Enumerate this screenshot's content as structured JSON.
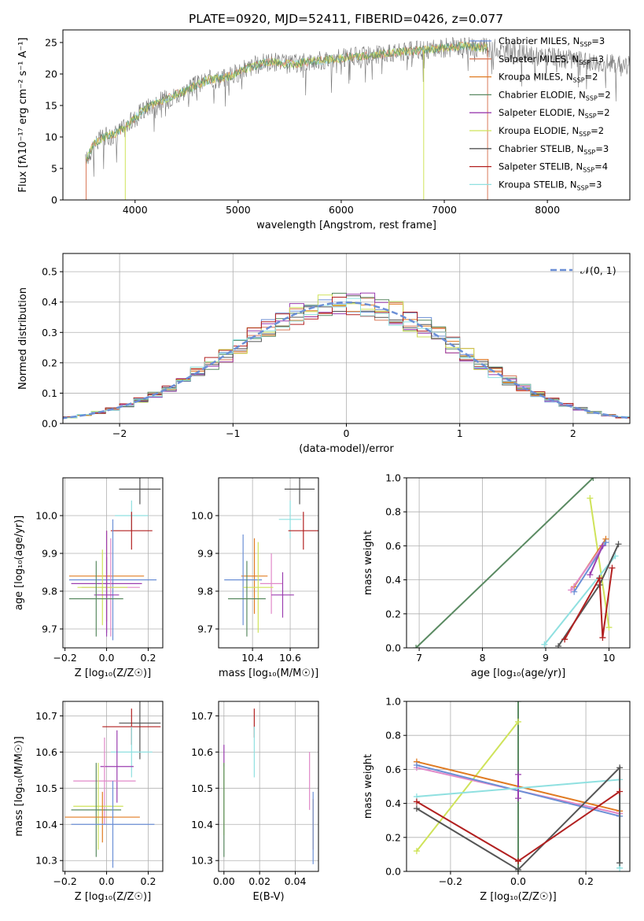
{
  "figure_title": "PLATE=0920, MJD=52411, FIBERID=0426, z=0.077",
  "palette": {
    "chabrier_miles": "#6b8fd6",
    "salpeter_miles": "#d97a5a",
    "kroupa_miles": "#e07b22",
    "chabrier_elodie": "#5a8a62",
    "salpeter_elodie": "#9b3fb0",
    "kroupa_elodie": "#cfe35a",
    "chabrier_stelib": "#555555",
    "salpeter_stelib": "#b22020",
    "kroupa_stelib": "#8fe0e0",
    "pink": "#e088c8",
    "normal_curve": "#6b8fd6",
    "grid": "#b0b0b0"
  },
  "chart_data": [
    {
      "id": "spectrum",
      "type": "line",
      "title": "PLATE=0920, MJD=52411, FIBERID=0426, z=0.077",
      "xlabel": "wavelength [Angstrom, rest frame]",
      "ylabel": "Flux [fλ10⁻¹⁷ erg cm⁻² s⁻¹ A⁻¹]",
      "xlim": [
        3300,
        8800
      ],
      "ylim": [
        0,
        27
      ],
      "xticks": [
        4000,
        5000,
        6000,
        7000,
        8000
      ],
      "yticks": [
        0,
        5,
        10,
        15,
        20,
        25
      ],
      "grid": false,
      "legend_position": "top-right",
      "legend": [
        {
          "label": "Chabrier MILES, N",
          "sub": "SSP",
          "tail": "=3",
          "key": "chabrier_miles"
        },
        {
          "label": "Salpeter MILES, N",
          "sub": "SSP",
          "tail": "=3",
          "key": "salpeter_miles"
        },
        {
          "label": "Kroupa MILES, N",
          "sub": "SSP",
          "tail": "=2",
          "key": "kroupa_miles"
        },
        {
          "label": "Chabrier ELODIE, N",
          "sub": "SSP",
          "tail": "=2",
          "key": "chabrier_elodie"
        },
        {
          "label": "Salpeter ELODIE, N",
          "sub": "SSP",
          "tail": "=2",
          "key": "salpeter_elodie"
        },
        {
          "label": "Kroupa ELODIE, N",
          "sub": "SSP",
          "tail": "=2",
          "key": "kroupa_elodie"
        },
        {
          "label": "Chabrier STELIB, N",
          "sub": "SSP",
          "tail": "=3",
          "key": "chabrier_stelib"
        },
        {
          "label": "Salpeter STELIB, N",
          "sub": "SSP",
          "tail": "=4",
          "key": "salpeter_stelib"
        },
        {
          "label": "Kroupa STELIB, N",
          "sub": "SSP",
          "tail": "=3",
          "key": "kroupa_stelib"
        }
      ],
      "data_trend": {
        "x": [
          3520,
          3600,
          3700,
          3800,
          3900,
          4000,
          4100,
          4200,
          4300,
          4500,
          4700,
          4900,
          5100,
          5300,
          5500,
          5700,
          6000,
          6300,
          6600,
          6900,
          7200,
          7500,
          7800,
          8100,
          8400,
          8800
        ],
        "y": [
          6,
          9,
          10,
          10.5,
          11.5,
          13,
          14.5,
          15.5,
          16,
          17.5,
          19,
          19.5,
          21,
          22,
          21.5,
          22,
          22.5,
          23,
          23.5,
          24,
          24.5,
          24,
          23,
          22.5,
          22,
          21.5
        ]
      },
      "model_coverage": {
        "start": 3520,
        "end": 7420
      }
    },
    {
      "id": "residuals",
      "type": "histogram",
      "xlabel": "(data-model)/error",
      "ylabel": "Normed distribution",
      "xlim": [
        -2.5,
        2.5
      ],
      "ylim": [
        0,
        0.56
      ],
      "xticks": [
        -2,
        -1,
        0,
        1,
        2
      ],
      "yticks": [
        0.0,
        0.1,
        0.2,
        0.3,
        0.4,
        0.5
      ],
      "grid": true,
      "bin_width": 0.125,
      "legend_position": "top-right",
      "legend": [
        {
          "label": "𝒩(0, 1)",
          "key": "normal_curve",
          "style": "dashed"
        }
      ]
    },
    {
      "id": "age_vs_Z",
      "type": "errorbar",
      "xlabel": "Z [log₁₀(Z/Z☉)]",
      "ylabel": "age  [log₁₀(age/yr)]",
      "xlim": [
        -0.21,
        0.27
      ],
      "ylim": [
        9.65,
        10.1
      ],
      "xticks": [
        -0.2,
        0.0,
        0.2
      ],
      "yticks": [
        9.7,
        9.8,
        9.9,
        10.0
      ],
      "grid": true,
      "points": [
        {
          "x": 0.16,
          "xerr": 0.1,
          "y": 10.07,
          "yerr": 0.04,
          "key": "chabrier_stelib"
        },
        {
          "x": 0.12,
          "xerr": 0.08,
          "y": 10.0,
          "yerr": 0.04,
          "key": "kroupa_stelib"
        },
        {
          "x": 0.12,
          "xerr": 0.1,
          "y": 9.96,
          "yerr": 0.05,
          "key": "salpeter_stelib"
        },
        {
          "x": 0.0,
          "xerr": 0.18,
          "y": 9.84,
          "yerr": 0.12,
          "key": "kroupa_miles"
        },
        {
          "x": 0.03,
          "xerr": 0.21,
          "y": 9.83,
          "yerr": 0.16,
          "key": "chabrier_miles"
        },
        {
          "x": 0.0,
          "xerr": 0.17,
          "y": 9.82,
          "yerr": 0.14,
          "key": "salpeter_elodie"
        },
        {
          "x": 0.02,
          "xerr": 0.14,
          "y": 9.81,
          "yerr": 0.13,
          "key": "pink"
        },
        {
          "x": -0.02,
          "xerr": 0.12,
          "y": 9.81,
          "yerr": 0.1,
          "key": "kroupa_elodie"
        },
        {
          "x": 0.0,
          "xerr": 0.06,
          "y": 9.79,
          "yerr": 0.1,
          "key": "salpeter_elodie"
        },
        {
          "x": -0.05,
          "xerr": 0.13,
          "y": 9.78,
          "yerr": 0.1,
          "key": "chabrier_elodie"
        }
      ]
    },
    {
      "id": "age_vs_mass",
      "type": "errorbar",
      "xlabel": "mass [log₁₀(M/M☉)]",
      "ylabel": "",
      "xlim": [
        10.22,
        10.75
      ],
      "ylim": [
        9.65,
        10.1
      ],
      "xticks": [
        10.4,
        10.6
      ],
      "yticks": [
        9.7,
        9.8,
        9.9,
        10.0
      ],
      "grid": true,
      "points": [
        {
          "x": 10.65,
          "xerr": 0.08,
          "y": 10.07,
          "yerr": 0.04,
          "key": "chabrier_stelib"
        },
        {
          "x": 10.6,
          "xerr": 0.06,
          "y": 9.99,
          "yerr": 0.05,
          "key": "kroupa_stelib"
        },
        {
          "x": 10.67,
          "xerr": 0.08,
          "y": 9.96,
          "yerr": 0.05,
          "key": "salpeter_stelib"
        },
        {
          "x": 10.41,
          "xerr": 0.07,
          "y": 9.84,
          "yerr": 0.1,
          "key": "kroupa_miles"
        },
        {
          "x": 10.35,
          "xerr": 0.1,
          "y": 9.83,
          "yerr": 0.12,
          "key": "chabrier_miles"
        },
        {
          "x": 10.5,
          "xerr": 0.06,
          "y": 9.82,
          "yerr": 0.08,
          "key": "pink"
        },
        {
          "x": 10.43,
          "xerr": 0.08,
          "y": 9.81,
          "yerr": 0.12,
          "key": "kroupa_elodie"
        },
        {
          "x": 10.56,
          "xerr": 0.06,
          "y": 9.79,
          "yerr": 0.06,
          "key": "salpeter_elodie"
        },
        {
          "x": 10.37,
          "xerr": 0.1,
          "y": 9.78,
          "yerr": 0.1,
          "key": "chabrier_elodie"
        }
      ]
    },
    {
      "id": "massweight_vs_age",
      "type": "line",
      "xlabel": "age  [log₁₀(age/yr)]",
      "ylabel": "mass weight",
      "xlim": [
        6.8,
        10.33
      ],
      "ylim": [
        0,
        1.0
      ],
      "xticks": [
        7,
        8,
        9,
        10
      ],
      "yticks": [
        0.0,
        0.2,
        0.4,
        0.6,
        0.8,
        1.0
      ],
      "grid": true,
      "series": [
        {
          "key": "chabrier_elodie",
          "x": [
            6.95,
            9.75
          ],
          "y": [
            0.0,
            1.0
          ]
        },
        {
          "key": "kroupa_elodie",
          "x": [
            9.7,
            10.0
          ],
          "y": [
            0.88,
            0.12
          ]
        },
        {
          "key": "kroupa_miles",
          "x": [
            9.45,
            9.95
          ],
          "y": [
            0.36,
            0.64
          ]
        },
        {
          "key": "chabrier_miles",
          "x": [
            9.45,
            9.95
          ],
          "y": [
            0.33,
            0.62
          ]
        },
        {
          "key": "pink",
          "x": [
            9.4,
            9.9
          ],
          "y": [
            0.34,
            0.6
          ]
        },
        {
          "key": "salpeter_elodie",
          "x": [
            9.7,
            9.9
          ],
          "y": [
            0.43,
            0.6
          ]
        },
        {
          "key": "kroupa_stelib",
          "x": [
            8.98,
            10.1
          ],
          "y": [
            0.02,
            0.54
          ]
        },
        {
          "key": "chabrier_stelib",
          "x": [
            9.2,
            9.85,
            10.15
          ],
          "y": [
            0.01,
            0.37,
            0.61
          ]
        },
        {
          "key": "salpeter_stelib",
          "x": [
            9.3,
            9.85,
            9.9,
            10.05
          ],
          "y": [
            0.05,
            0.41,
            0.06,
            0.47
          ]
        }
      ]
    },
    {
      "id": "mass_vs_Z",
      "type": "errorbar",
      "xlabel": "Z [log₁₀(Z/Z☉)]",
      "ylabel": "mass [log₁₀(M/M☉)]",
      "xlim": [
        -0.21,
        0.27
      ],
      "ylim": [
        10.27,
        10.74
      ],
      "xticks": [
        -0.2,
        0.0,
        0.2
      ],
      "yticks": [
        10.3,
        10.4,
        10.5,
        10.6,
        10.7
      ],
      "grid": true,
      "points": [
        {
          "x": 0.16,
          "xerr": 0.1,
          "y": 10.68,
          "yerr": 0.1,
          "key": "chabrier_stelib"
        },
        {
          "x": 0.12,
          "xerr": 0.14,
          "y": 10.67,
          "yerr": 0.05,
          "key": "salpeter_stelib"
        },
        {
          "x": 0.12,
          "xerr": 0.1,
          "y": 10.6,
          "yerr": 0.07,
          "key": "kroupa_stelib"
        },
        {
          "x": 0.05,
          "xerr": 0.08,
          "y": 10.56,
          "yerr": 0.1,
          "key": "salpeter_elodie"
        },
        {
          "x": -0.01,
          "xerr": 0.15,
          "y": 10.52,
          "yerr": 0.12,
          "key": "pink"
        },
        {
          "x": -0.04,
          "xerr": 0.12,
          "y": 10.45,
          "yerr": 0.12,
          "key": "kroupa_elodie"
        },
        {
          "x": -0.05,
          "xerr": 0.12,
          "y": 10.44,
          "yerr": 0.13,
          "key": "chabrier_elodie"
        },
        {
          "x": -0.02,
          "xerr": 0.18,
          "y": 10.42,
          "yerr": 0.07,
          "key": "kroupa_miles"
        },
        {
          "x": 0.03,
          "xerr": 0.2,
          "y": 10.4,
          "yerr": 0.12,
          "key": "chabrier_miles"
        }
      ]
    },
    {
      "id": "mass_vs_ebv",
      "type": "errorbar",
      "xlabel": "E(B-V)",
      "ylabel": "",
      "xlim": [
        -0.003,
        0.053
      ],
      "ylim": [
        10.27,
        10.74
      ],
      "xticks": [
        0.0,
        0.02,
        0.04
      ],
      "yticks": [
        10.3,
        10.4,
        10.5,
        10.6,
        10.7
      ],
      "grid": true,
      "points": [
        {
          "x": 0.017,
          "y": 10.68,
          "yerr": 0.04,
          "key": "salpeter_stelib"
        },
        {
          "x": 0.017,
          "y": 10.6,
          "yerr": 0.07,
          "key": "kroupa_stelib"
        },
        {
          "x": 0.0,
          "y": 10.59,
          "yerr": 0.03,
          "key": "salpeter_elodie"
        },
        {
          "x": 0.0,
          "y": 10.47,
          "yerr": 0.1,
          "key": "kroupa_elodie"
        },
        {
          "x": 0.0,
          "y": 10.44,
          "yerr": 0.13,
          "key": "chabrier_elodie"
        },
        {
          "x": 0.048,
          "y": 10.52,
          "yerr": 0.08,
          "key": "pink"
        },
        {
          "x": 0.05,
          "y": 10.4,
          "yerr": 0.07,
          "key": "kroupa_miles"
        },
        {
          "x": 0.05,
          "y": 10.39,
          "yerr": 0.1,
          "key": "chabrier_miles"
        }
      ]
    },
    {
      "id": "massweight_vs_Z",
      "type": "line",
      "xlabel": "Z [log₁₀(Z/Z☉)]",
      "ylabel": "mass weight",
      "xlim": [
        -0.33,
        0.33
      ],
      "ylim": [
        0,
        1.0
      ],
      "xticks": [
        -0.2,
        0.0,
        0.2
      ],
      "yticks": [
        0.0,
        0.2,
        0.4,
        0.6,
        0.8,
        1.0
      ],
      "grid": true,
      "series": [
        {
          "key": "chabrier_elodie",
          "x": [
            0.0,
            0.0
          ],
          "y": [
            0.0,
            1.0
          ]
        },
        {
          "key": "kroupa_elodie",
          "x": [
            -0.3,
            0.0
          ],
          "y": [
            0.12,
            0.88
          ]
        },
        {
          "key": "kroupa_miles",
          "x": [
            -0.3,
            0.3
          ],
          "y": [
            0.645,
            0.355
          ]
        },
        {
          "key": "pink",
          "x": [
            -0.3,
            0.3
          ],
          "y": [
            0.61,
            0.34
          ]
        },
        {
          "key": "chabrier_miles",
          "x": [
            -0.3,
            0.3
          ],
          "y": [
            0.625,
            0.325
          ]
        },
        {
          "key": "salpeter_elodie",
          "x": [
            0.0,
            0.0
          ],
          "y": [
            0.43,
            0.57
          ]
        },
        {
          "key": "kroupa_stelib",
          "x": [
            -0.3,
            0.3,
            0.3
          ],
          "y": [
            0.44,
            0.54,
            0.02
          ]
        },
        {
          "key": "chabrier_stelib",
          "x": [
            -0.3,
            0.0,
            0.3,
            0.3
          ],
          "y": [
            0.37,
            0.01,
            0.61,
            0.05
          ]
        },
        {
          "key": "salpeter_stelib",
          "x": [
            -0.3,
            0.0,
            0.3
          ],
          "y": [
            0.41,
            0.06,
            0.47
          ]
        }
      ]
    }
  ]
}
